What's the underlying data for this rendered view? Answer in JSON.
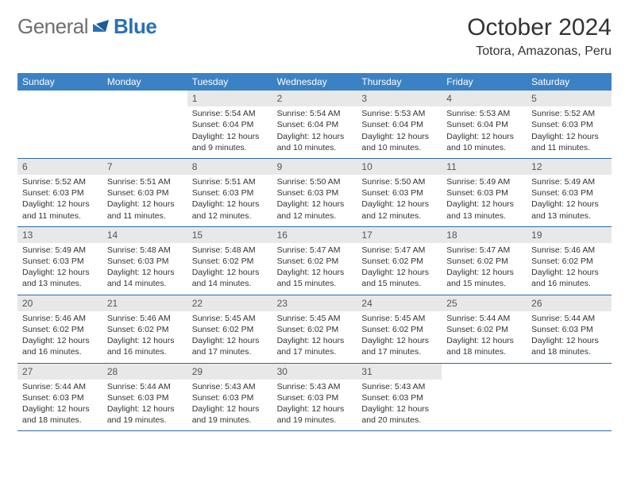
{
  "logo": {
    "gray": "General",
    "blue": "Blue"
  },
  "title": "October 2024",
  "location": "Totora, Amazonas, Peru",
  "weekdays": [
    "Sunday",
    "Monday",
    "Tuesday",
    "Wednesday",
    "Thursday",
    "Friday",
    "Saturday"
  ],
  "colors": {
    "header_bg": "#3b82c4",
    "header_text": "#ffffff",
    "daynum_bg": "#e8e8e8",
    "week_border": "#2a6aa8",
    "logo_gray": "#6f6f6f",
    "logo_blue": "#2a70b8"
  },
  "fonts": {
    "month_title_size": 30,
    "location_size": 16,
    "weekday_size": 12,
    "daynum_size": 12,
    "body_size": 10.5
  },
  "weeks": [
    [
      {
        "num": "",
        "sunrise": "",
        "sunset": "",
        "daylight": ""
      },
      {
        "num": "",
        "sunrise": "",
        "sunset": "",
        "daylight": ""
      },
      {
        "num": "1",
        "sunrise": "Sunrise: 5:54 AM",
        "sunset": "Sunset: 6:04 PM",
        "daylight": "Daylight: 12 hours and 9 minutes."
      },
      {
        "num": "2",
        "sunrise": "Sunrise: 5:54 AM",
        "sunset": "Sunset: 6:04 PM",
        "daylight": "Daylight: 12 hours and 10 minutes."
      },
      {
        "num": "3",
        "sunrise": "Sunrise: 5:53 AM",
        "sunset": "Sunset: 6:04 PM",
        "daylight": "Daylight: 12 hours and 10 minutes."
      },
      {
        "num": "4",
        "sunrise": "Sunrise: 5:53 AM",
        "sunset": "Sunset: 6:04 PM",
        "daylight": "Daylight: 12 hours and 10 minutes."
      },
      {
        "num": "5",
        "sunrise": "Sunrise: 5:52 AM",
        "sunset": "Sunset: 6:03 PM",
        "daylight": "Daylight: 12 hours and 11 minutes."
      }
    ],
    [
      {
        "num": "6",
        "sunrise": "Sunrise: 5:52 AM",
        "sunset": "Sunset: 6:03 PM",
        "daylight": "Daylight: 12 hours and 11 minutes."
      },
      {
        "num": "7",
        "sunrise": "Sunrise: 5:51 AM",
        "sunset": "Sunset: 6:03 PM",
        "daylight": "Daylight: 12 hours and 11 minutes."
      },
      {
        "num": "8",
        "sunrise": "Sunrise: 5:51 AM",
        "sunset": "Sunset: 6:03 PM",
        "daylight": "Daylight: 12 hours and 12 minutes."
      },
      {
        "num": "9",
        "sunrise": "Sunrise: 5:50 AM",
        "sunset": "Sunset: 6:03 PM",
        "daylight": "Daylight: 12 hours and 12 minutes."
      },
      {
        "num": "10",
        "sunrise": "Sunrise: 5:50 AM",
        "sunset": "Sunset: 6:03 PM",
        "daylight": "Daylight: 12 hours and 12 minutes."
      },
      {
        "num": "11",
        "sunrise": "Sunrise: 5:49 AM",
        "sunset": "Sunset: 6:03 PM",
        "daylight": "Daylight: 12 hours and 13 minutes."
      },
      {
        "num": "12",
        "sunrise": "Sunrise: 5:49 AM",
        "sunset": "Sunset: 6:03 PM",
        "daylight": "Daylight: 12 hours and 13 minutes."
      }
    ],
    [
      {
        "num": "13",
        "sunrise": "Sunrise: 5:49 AM",
        "sunset": "Sunset: 6:03 PM",
        "daylight": "Daylight: 12 hours and 13 minutes."
      },
      {
        "num": "14",
        "sunrise": "Sunrise: 5:48 AM",
        "sunset": "Sunset: 6:03 PM",
        "daylight": "Daylight: 12 hours and 14 minutes."
      },
      {
        "num": "15",
        "sunrise": "Sunrise: 5:48 AM",
        "sunset": "Sunset: 6:02 PM",
        "daylight": "Daylight: 12 hours and 14 minutes."
      },
      {
        "num": "16",
        "sunrise": "Sunrise: 5:47 AM",
        "sunset": "Sunset: 6:02 PM",
        "daylight": "Daylight: 12 hours and 15 minutes."
      },
      {
        "num": "17",
        "sunrise": "Sunrise: 5:47 AM",
        "sunset": "Sunset: 6:02 PM",
        "daylight": "Daylight: 12 hours and 15 minutes."
      },
      {
        "num": "18",
        "sunrise": "Sunrise: 5:47 AM",
        "sunset": "Sunset: 6:02 PM",
        "daylight": "Daylight: 12 hours and 15 minutes."
      },
      {
        "num": "19",
        "sunrise": "Sunrise: 5:46 AM",
        "sunset": "Sunset: 6:02 PM",
        "daylight": "Daylight: 12 hours and 16 minutes."
      }
    ],
    [
      {
        "num": "20",
        "sunrise": "Sunrise: 5:46 AM",
        "sunset": "Sunset: 6:02 PM",
        "daylight": "Daylight: 12 hours and 16 minutes."
      },
      {
        "num": "21",
        "sunrise": "Sunrise: 5:46 AM",
        "sunset": "Sunset: 6:02 PM",
        "daylight": "Daylight: 12 hours and 16 minutes."
      },
      {
        "num": "22",
        "sunrise": "Sunrise: 5:45 AM",
        "sunset": "Sunset: 6:02 PM",
        "daylight": "Daylight: 12 hours and 17 minutes."
      },
      {
        "num": "23",
        "sunrise": "Sunrise: 5:45 AM",
        "sunset": "Sunset: 6:02 PM",
        "daylight": "Daylight: 12 hours and 17 minutes."
      },
      {
        "num": "24",
        "sunrise": "Sunrise: 5:45 AM",
        "sunset": "Sunset: 6:02 PM",
        "daylight": "Daylight: 12 hours and 17 minutes."
      },
      {
        "num": "25",
        "sunrise": "Sunrise: 5:44 AM",
        "sunset": "Sunset: 6:02 PM",
        "daylight": "Daylight: 12 hours and 18 minutes."
      },
      {
        "num": "26",
        "sunrise": "Sunrise: 5:44 AM",
        "sunset": "Sunset: 6:03 PM",
        "daylight": "Daylight: 12 hours and 18 minutes."
      }
    ],
    [
      {
        "num": "27",
        "sunrise": "Sunrise: 5:44 AM",
        "sunset": "Sunset: 6:03 PM",
        "daylight": "Daylight: 12 hours and 18 minutes."
      },
      {
        "num": "28",
        "sunrise": "Sunrise: 5:44 AM",
        "sunset": "Sunset: 6:03 PM",
        "daylight": "Daylight: 12 hours and 19 minutes."
      },
      {
        "num": "29",
        "sunrise": "Sunrise: 5:43 AM",
        "sunset": "Sunset: 6:03 PM",
        "daylight": "Daylight: 12 hours and 19 minutes."
      },
      {
        "num": "30",
        "sunrise": "Sunrise: 5:43 AM",
        "sunset": "Sunset: 6:03 PM",
        "daylight": "Daylight: 12 hours and 19 minutes."
      },
      {
        "num": "31",
        "sunrise": "Sunrise: 5:43 AM",
        "sunset": "Sunset: 6:03 PM",
        "daylight": "Daylight: 12 hours and 20 minutes."
      },
      {
        "num": "",
        "sunrise": "",
        "sunset": "",
        "daylight": ""
      },
      {
        "num": "",
        "sunrise": "",
        "sunset": "",
        "daylight": ""
      }
    ]
  ]
}
